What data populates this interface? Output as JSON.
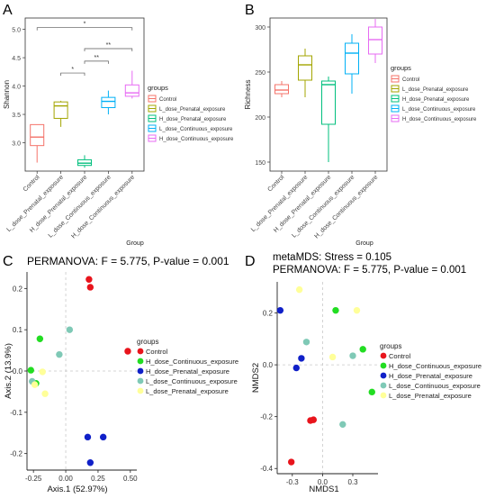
{
  "colors": {
    "Control": "#e8141c",
    "H_dose_Continuous_exposure": "#22dd22",
    "H_dose_Prenatal_exposure": "#1020c8",
    "L_dose_Continuous_exposure": "#7fc9b6",
    "L_dose_Prenatal_exposure": "#ffff99",
    "box_Control": "#f4736a",
    "box_L_dose_Prenatal_exposure": "#a3a500",
    "box_H_dose_Prenatal_exposure": "#00bf7d",
    "box_L_dose_Continuous_exposure": "#00b0f6",
    "box_H_dose_Continuous_exposure": "#e76bf3"
  },
  "panels": {
    "A": {
      "letter": "A"
    },
    "B": {
      "letter": "B"
    },
    "C": {
      "letter": "C",
      "title": "PERMANOVA: F = 5.775, P-value = 0.001"
    },
    "D": {
      "letter": "D",
      "title1": "metaMDS: Stress = 0.105",
      "title2": "PERMANOVA: F = 5.775, P-value = 0.001"
    }
  },
  "chart_data": [
    {
      "type": "box",
      "panel": "A",
      "xlabel": "Group",
      "ylabel": "Shannon",
      "ylim": [
        2.5,
        5.2
      ],
      "yticks": [
        3.0,
        3.5,
        4.0,
        4.5,
        5.0
      ],
      "categories": [
        "Control",
        "L_dose_Prenatal_exposure",
        "H_dose_Prenatal_exposure",
        "L_dose_Continuous_exposure",
        "H_dose_Continuous_exposure"
      ],
      "boxes": [
        {
          "min": 2.65,
          "q1": 2.95,
          "median": 3.1,
          "q3": 3.32,
          "max": 3.32
        },
        {
          "min": 3.28,
          "q1": 3.43,
          "median": 3.65,
          "q3": 3.72,
          "max": 3.74
        },
        {
          "min": 2.56,
          "q1": 2.6,
          "median": 2.64,
          "q3": 2.7,
          "max": 2.78
        },
        {
          "min": 3.5,
          "q1": 3.62,
          "median": 3.73,
          "q3": 3.8,
          "max": 3.92
        },
        {
          "min": 3.78,
          "q1": 3.82,
          "median": 3.88,
          "q3": 4.02,
          "max": 4.27
        }
      ],
      "significance": [
        {
          "from": 0,
          "to": 4,
          "label": "*",
          "y": 5.03
        },
        {
          "from": 2,
          "to": 4,
          "label": "**",
          "y": 4.66
        },
        {
          "from": 2,
          "to": 3,
          "label": "**",
          "y": 4.44
        },
        {
          "from": 1,
          "to": 2,
          "label": "*",
          "y": 4.23
        }
      ],
      "legend_title": "groups",
      "legend": [
        "Control",
        "L_dose_Prenatal_exposure",
        "H_dose_Prenatal_exposure",
        "L_dose_Continuous_exposure",
        "H_dose_Continuous_exposure"
      ]
    },
    {
      "type": "box",
      "panel": "B",
      "xlabel": "Group",
      "ylabel": "Richness",
      "ylim": [
        140,
        310
      ],
      "yticks": [
        150,
        200,
        250,
        300
      ],
      "categories": [
        "Control",
        "L_dose_Prenatal_exposure",
        "H_dose_Prenatal_exposure",
        "L_dose_Continuous_exposure",
        "H_dose_Continuous_exposure"
      ],
      "boxes": [
        {
          "min": 222,
          "q1": 226,
          "median": 230,
          "q3": 236,
          "max": 240
        },
        {
          "min": 222,
          "q1": 241,
          "median": 258,
          "q3": 268,
          "max": 276
        },
        {
          "min": 150,
          "q1": 192,
          "median": 236,
          "q3": 240,
          "max": 245
        },
        {
          "min": 226,
          "q1": 248,
          "median": 271,
          "q3": 282,
          "max": 292
        },
        {
          "min": 260,
          "q1": 270,
          "median": 286,
          "q3": 300,
          "max": 309
        }
      ],
      "legend_title": "groups",
      "legend": [
        "Control",
        "L_dose_Prenatal_exposure",
        "H_dose_Prenatal_exposure",
        "L_dose_Continuous_exposure",
        "H_dose_Continuous_exposure"
      ]
    },
    {
      "type": "scatter",
      "panel": "C",
      "xlabel": "Axis.1 (52.97%)",
      "ylabel": "Axis.2 (13.9%)",
      "xlim": [
        -0.3,
        0.55
      ],
      "ylim": [
        -0.24,
        0.24
      ],
      "xticks": [
        -0.25,
        0.0,
        0.25,
        0.5
      ],
      "xtick_labels": [
        "-0.25",
        "0.00",
        "0.25",
        "0.50"
      ],
      "yticks": [
        -0.2,
        -0.1,
        0.0,
        0.1,
        0.2
      ],
      "ytick_labels": [
        "-0.2",
        "-0.1",
        "0.0 ",
        "0.1",
        "0.2"
      ],
      "legend_title": "groups",
      "legend": [
        "Control",
        "H_dose_Continuous_exposure",
        "H_dose_Prenatal_exposure",
        "L_dose_Continuous_exposure",
        "L_dose_Prenatal_exposure"
      ],
      "series": [
        {
          "name": "Control",
          "points": [
            [
              0.18,
              0.222
            ],
            [
              0.19,
              0.203
            ],
            [
              0.48,
              0.048
            ]
          ]
        },
        {
          "name": "H_dose_Continuous_exposure",
          "points": [
            [
              -0.2,
              0.078
            ],
            [
              -0.27,
              0.002
            ],
            [
              -0.23,
              -0.03
            ]
          ]
        },
        {
          "name": "H_dose_Prenatal_exposure",
          "points": [
            [
              0.17,
              -0.16
            ],
            [
              0.29,
              -0.16
            ],
            [
              0.19,
              -0.222
            ]
          ]
        },
        {
          "name": "L_dose_Continuous_exposure",
          "points": [
            [
              0.03,
              0.1
            ],
            [
              -0.05,
              0.04
            ],
            [
              -0.26,
              -0.025
            ]
          ]
        },
        {
          "name": "L_dose_Prenatal_exposure",
          "points": [
            [
              -0.18,
              -0.002
            ],
            [
              -0.16,
              -0.055
            ],
            [
              -0.24,
              -0.033
            ]
          ]
        }
      ]
    },
    {
      "type": "scatter",
      "panel": "D",
      "xlabel": "NMDS1",
      "ylabel": "NMDS2",
      "xlim": [
        -0.45,
        0.55
      ],
      "ylim": [
        -0.42,
        0.32
      ],
      "xticks": [
        -0.3,
        0.0,
        0.3
      ],
      "xtick_labels": [
        "-0.3",
        "0.0",
        "0.3"
      ],
      "yticks": [
        -0.4,
        -0.2,
        0.0,
        0.2
      ],
      "ytick_labels": [
        "-0.4",
        "-0.2",
        "0.0",
        "0.2"
      ],
      "legend_title": "groups",
      "legend": [
        "Control",
        "H_dose_Continuous_exposure",
        "H_dose_Prenatal_exposure",
        "L_dose_Continuous_exposure",
        "L_dose_Prenatal_exposure"
      ],
      "series": [
        {
          "name": "Control",
          "points": [
            [
              -0.12,
              -0.215
            ],
            [
              -0.09,
              -0.212
            ],
            [
              -0.31,
              -0.375
            ]
          ]
        },
        {
          "name": "H_dose_Continuous_exposure",
          "points": [
            [
              0.13,
              0.21
            ],
            [
              0.4,
              0.06
            ],
            [
              0.49,
              -0.105
            ]
          ]
        },
        {
          "name": "H_dose_Prenatal_exposure",
          "points": [
            [
              -0.42,
              0.21
            ],
            [
              -0.21,
              0.025
            ],
            [
              -0.26,
              -0.012
            ]
          ]
        },
        {
          "name": "L_dose_Continuous_exposure",
          "points": [
            [
              -0.16,
              0.088
            ],
            [
              0.3,
              0.035
            ],
            [
              0.2,
              -0.23
            ]
          ]
        },
        {
          "name": "L_dose_Prenatal_exposure",
          "points": [
            [
              -0.23,
              0.29
            ],
            [
              0.1,
              0.03
            ],
            [
              0.34,
              0.21
            ]
          ]
        }
      ]
    }
  ]
}
